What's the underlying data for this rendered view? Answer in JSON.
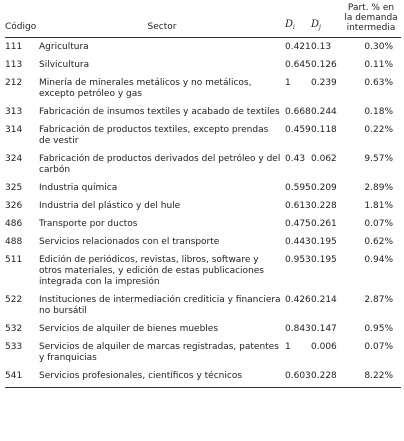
{
  "table": {
    "headers": {
      "codigo": "Código",
      "sector": "Sector",
      "di_letter": "D",
      "di_sub": "i",
      "dj_letter": "D",
      "dj_sub": "j",
      "part_line1": "Part. % en",
      "part_line2": "la demanda",
      "part_line3": "intermedia"
    },
    "rows": [
      {
        "codigo": "111",
        "sector": "Agricultura",
        "di": "0.421",
        "dj": "0.13",
        "part": "0.30%"
      },
      {
        "codigo": "113",
        "sector": "Silvicultura",
        "di": "0.645",
        "dj": "0.126",
        "part": "0.11%"
      },
      {
        "codigo": "212",
        "sector": "Minería de minerales metálicos y no metálicos, excepto petróleo y gas",
        "di": "1",
        "dj": "0.239",
        "part": "0.63%"
      },
      {
        "codigo": "313",
        "sector": "Fabricación de insumos textiles y acabado de textiles",
        "di": "0.668",
        "dj": "0.244",
        "part": "0.18%"
      },
      {
        "codigo": "314",
        "sector": "Fabricación de productos textiles, excepto prendas de vestir",
        "di": "0.459",
        "dj": "0.118",
        "part": "0.22%"
      },
      {
        "codigo": "324",
        "sector": "Fabricación de productos derivados del petróleo y del carbón",
        "di": "0.43",
        "dj": "0.062",
        "part": "9.57%"
      },
      {
        "codigo": "325",
        "sector": "Industria química",
        "di": "0.595",
        "dj": "0.209",
        "part": "2.89%"
      },
      {
        "codigo": "326",
        "sector": "Industria del plástico y del hule",
        "di": "0.613",
        "dj": "0.228",
        "part": "1.81%"
      },
      {
        "codigo": "486",
        "sector": "Transporte por ductos",
        "di": "0.475",
        "dj": "0.261",
        "part": "0.07%"
      },
      {
        "codigo": "488",
        "sector": "Servicios relacionados con el transporte",
        "di": "0.443",
        "dj": "0.195",
        "part": "0.62%"
      },
      {
        "codigo": "511",
        "sector": "Edición de periódicos, revistas, libros, software y otros materiales, y edición de estas publicaciones integrada con la impresión",
        "di": "0.953",
        "dj": "0.195",
        "part": "0.94%"
      },
      {
        "codigo": "522",
        "sector": "Instituciones de intermediación crediticia y financiera no bursátil",
        "di": "0.426",
        "dj": "0.214",
        "part": "2.87%"
      },
      {
        "codigo": "532",
        "sector": "Servicios de alquiler de bienes muebles",
        "di": "0.843",
        "dj": "0.147",
        "part": "0.95%"
      },
      {
        "codigo": "533",
        "sector": "Servicios de alquiler de marcas registradas, patentes y franquicias",
        "di": "1",
        "dj": "0.006",
        "part": "0.07%"
      },
      {
        "codigo": "541",
        "sector": "Servicios profesionales, científicos y técnicos",
        "di": "0.603",
        "dj": "0.228",
        "part": "8.22%"
      }
    ]
  }
}
